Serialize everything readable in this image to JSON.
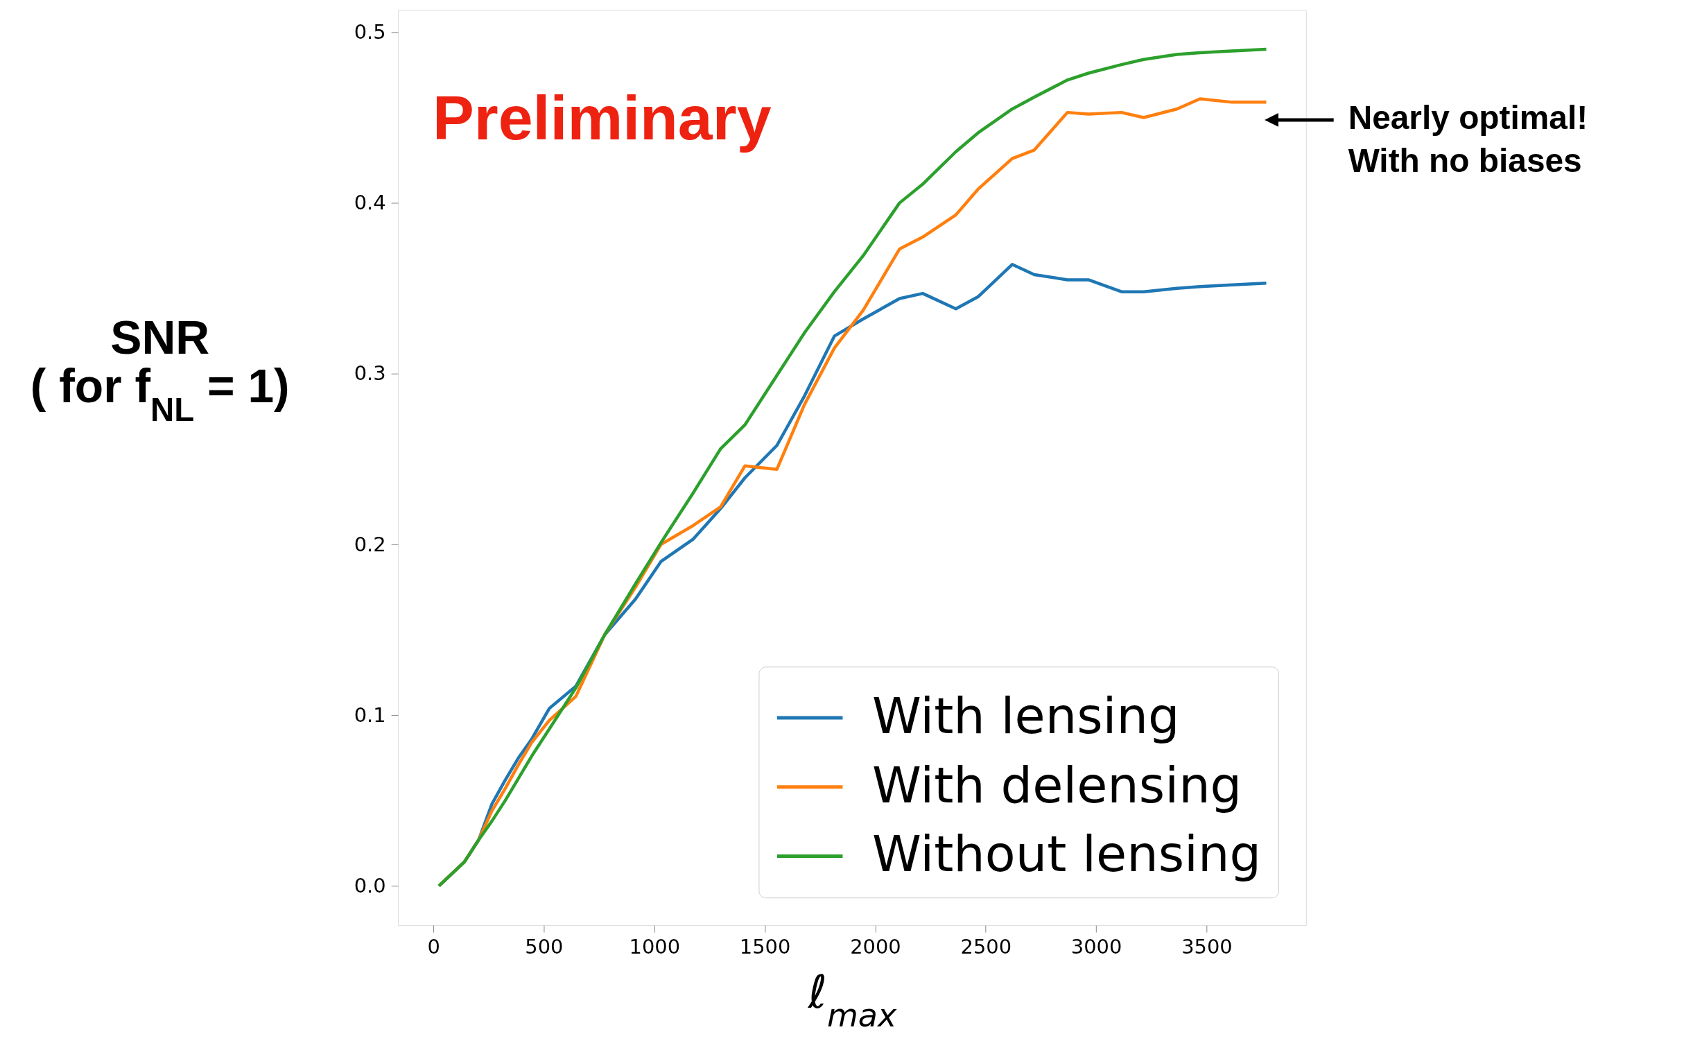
{
  "chart_data": {
    "type": "line",
    "xlabel": "ℓ$_{max}$",
    "ylabel": "SNR\n( for f$_{NL}$ = 1)",
    "x": [
      25,
      140,
      205,
      265,
      325,
      385,
      445,
      525,
      645,
      775,
      915,
      1030,
      1175,
      1300,
      1410,
      1555,
      1680,
      1815,
      1945,
      2110,
      2215,
      2365,
      2465,
      2620,
      2720,
      2870,
      2965,
      3115,
      3215,
      3365,
      3470,
      3615,
      3770
    ],
    "series": [
      {
        "name": "With lensing",
        "color": "#1f77b4",
        "values": [
          0,
          0.014,
          0.027,
          0.048,
          0.062,
          0.075,
          0.086,
          0.104,
          0.117,
          0.147,
          0.168,
          0.19,
          0.203,
          0.221,
          0.239,
          0.258,
          0.287,
          0.322,
          0.332,
          0.344,
          0.347,
          0.338,
          0.345,
          0.364,
          0.358,
          0.355,
          0.355,
          0.348,
          0.348,
          0.35,
          0.351,
          0.352,
          0.353
        ]
      },
      {
        "name": "With delensing",
        "color": "#ff7f0e",
        "values": [
          0,
          0.014,
          0.027,
          0.044,
          0.057,
          0.071,
          0.084,
          0.097,
          0.111,
          0.147,
          0.175,
          0.2,
          0.211,
          0.222,
          0.246,
          0.244,
          0.282,
          0.315,
          0.337,
          0.373,
          0.38,
          0.393,
          0.408,
          0.426,
          0.431,
          0.453,
          0.452,
          0.453,
          0.45,
          0.455,
          0.461,
          0.459,
          0.459
        ]
      },
      {
        "name": "Without lensing",
        "color": "#2ca02c",
        "values": [
          0,
          0.014,
          0.027,
          0.038,
          0.05,
          0.063,
          0.076,
          0.092,
          0.116,
          0.147,
          0.177,
          0.201,
          0.23,
          0.256,
          0.27,
          0.299,
          0.324,
          0.348,
          0.369,
          0.4,
          0.411,
          0.43,
          0.441,
          0.455,
          0.462,
          0.472,
          0.476,
          0.481,
          0.484,
          0.487,
          0.488,
          0.489,
          0.49
        ]
      }
    ],
    "xlim": [
      -160,
      3950
    ],
    "ylim": [
      -0.023,
      0.513
    ],
    "xticks": [
      0,
      500,
      1000,
      1500,
      2000,
      2500,
      3000,
      3500
    ],
    "yticks": [
      {
        "value": 0,
        "label": "0.0"
      },
      0.1,
      0.2,
      0.3,
      0.4,
      0.5
    ],
    "annotations": [
      "Preliminary",
      "Nearly optimal!\nWith no biases"
    ],
    "legend": "bottom right",
    "grid": false,
    "marker": "none",
    "line_style": "solid"
  }
}
